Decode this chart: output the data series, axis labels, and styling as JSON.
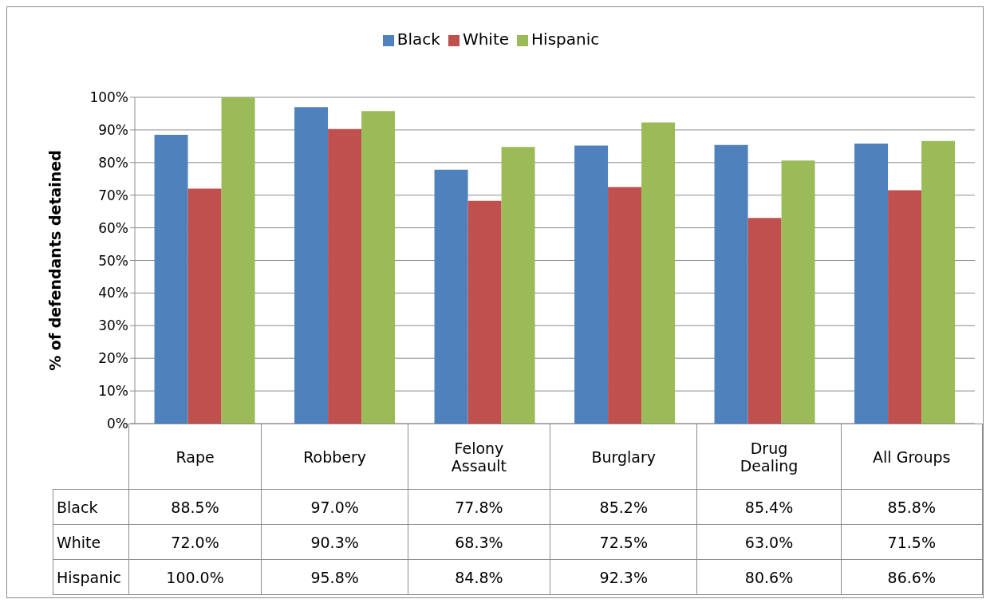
{
  "chart_data": {
    "type": "bar",
    "ylabel": "% of defendants detained",
    "categories": [
      "Rape",
      "Robbery",
      "Felony Assault",
      "Burglary",
      "Drug Dealing",
      "All Groups"
    ],
    "series": [
      {
        "name": "Black",
        "color": "#4f81bd",
        "values": [
          88.5,
          97.0,
          77.8,
          85.2,
          85.4,
          85.8
        ],
        "value_labels": [
          "88.5%",
          "97.0%",
          "77.8%",
          "85.2%",
          "85.4%",
          "85.8%"
        ]
      },
      {
        "name": "White",
        "color": "#c0504d",
        "values": [
          72.0,
          90.3,
          68.3,
          72.5,
          63.0,
          71.5
        ],
        "value_labels": [
          "72.0%",
          "90.3%",
          "68.3%",
          "72.5%",
          "63.0%",
          "71.5%"
        ]
      },
      {
        "name": "Hispanic",
        "color": "#9bbb59",
        "values": [
          100.0,
          95.8,
          84.8,
          92.3,
          80.6,
          86.6
        ],
        "value_labels": [
          "100.0%",
          "95.8%",
          "84.8%",
          "92.3%",
          "80.6%",
          "86.6%"
        ]
      }
    ],
    "ylim": [
      0,
      100
    ],
    "yticks": [
      {
        "value": 0,
        "label": "0%"
      },
      {
        "value": 10,
        "label": "10%"
      },
      {
        "value": 20,
        "label": "20%"
      },
      {
        "value": 30,
        "label": "30%"
      },
      {
        "value": 40,
        "label": "40%"
      },
      {
        "value": 50,
        "label": "50%"
      },
      {
        "value": 60,
        "label": "60%"
      },
      {
        "value": 70,
        "label": "70%"
      },
      {
        "value": 80,
        "label": "80%"
      },
      {
        "value": 90,
        "label": "90%"
      },
      {
        "value": 100,
        "label": "100%"
      }
    ],
    "grid": "y",
    "legend": "top"
  }
}
